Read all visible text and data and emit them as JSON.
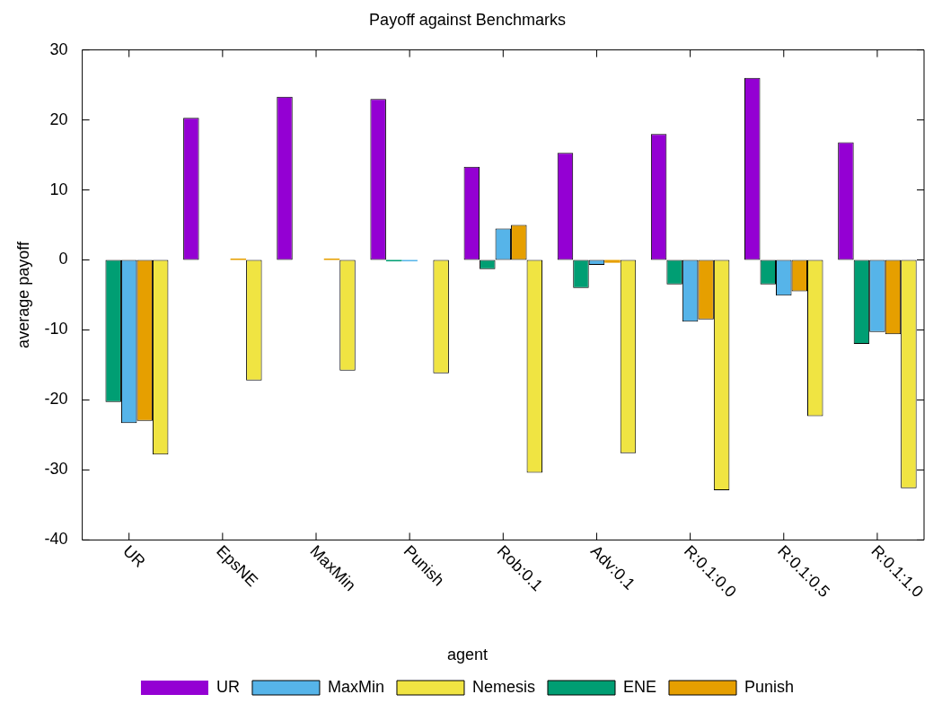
{
  "chart_data": {
    "type": "bar",
    "title": "Payoff against Benchmarks",
    "ylabel": "average payoff",
    "legend_title": "agent",
    "categories": [
      "UR",
      "EpsNE",
      "MaxMin",
      "Punish",
      "Rob:0.1",
      "Adv:0.1",
      "R:0.1:0.0",
      "R:0.1:0.5",
      "R:0.1:1.0"
    ],
    "series": [
      {
        "name": "UR",
        "color": "#9400d3",
        "values": [
          0,
          20.3,
          23.3,
          23,
          13.3,
          15.3,
          18,
          26,
          16.8
        ]
      },
      {
        "name": "ENE",
        "color": "#009e73",
        "values": [
          -20.3,
          0,
          0,
          -0.2,
          -1.3,
          -4,
          -3.5,
          -3.5,
          -12
        ]
      },
      {
        "name": "MaxMin",
        "color": "#56b4e9",
        "values": [
          -23.3,
          0,
          0,
          -0.2,
          4.5,
          -0.7,
          -8.8,
          -5.1,
          -10.3
        ]
      },
      {
        "name": "Punish",
        "color": "#e69f00",
        "values": [
          -23,
          0.2,
          0.2,
          0,
          5,
          -0.4,
          -8.5,
          -4.5,
          -10.6
        ]
      },
      {
        "name": "Nemesis",
        "color": "#f0e442",
        "values": [
          -27.8,
          -17.2,
          -15.8,
          -16.2,
          -30.4,
          -27.6,
          -32.9,
          -22.3,
          -32.6
        ]
      }
    ],
    "ylim": [
      -40,
      30
    ],
    "yticks": [
      -40,
      -30,
      -20,
      -10,
      0,
      10,
      20,
      30
    ],
    "grid": false,
    "legend": "bottom"
  }
}
